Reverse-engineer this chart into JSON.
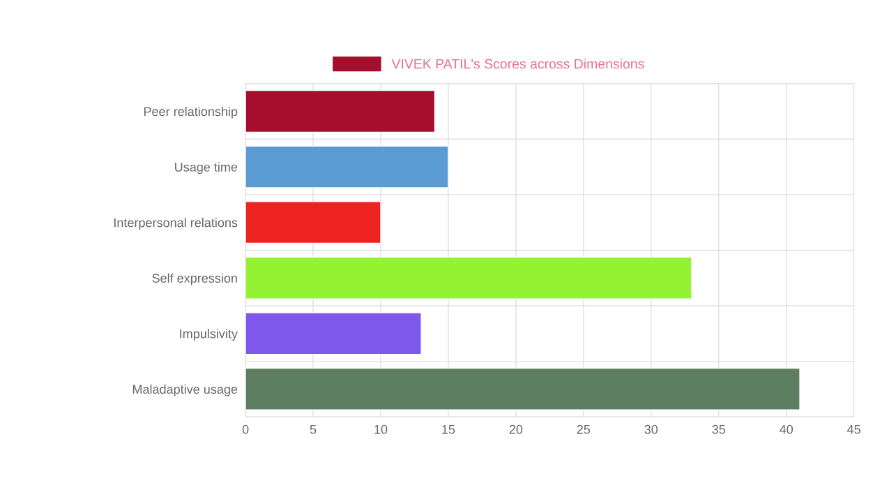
{
  "chart_data": {
    "type": "bar",
    "orientation": "horizontal",
    "categories": [
      "Peer relationship",
      "Usage time",
      "Interpersonal relations",
      "Self expression",
      "Impulsivity",
      "Maladaptive usage"
    ],
    "series": [
      {
        "name": "VIVEK PATIL's Scores across Dimensions",
        "color": "#a50e2d",
        "colors": [
          "#a50e2d",
          "#5a9bd4",
          "#ec2320",
          "#93f232",
          "#7e57eb",
          "#5e7e61"
        ],
        "values": [
          14,
          15,
          10,
          33,
          13,
          41
        ]
      }
    ],
    "xlim": [
      0,
      45
    ],
    "xticks": [
      0,
      5,
      10,
      15,
      20,
      25,
      30,
      35,
      40,
      45
    ],
    "grid": true,
    "legend": "top"
  }
}
